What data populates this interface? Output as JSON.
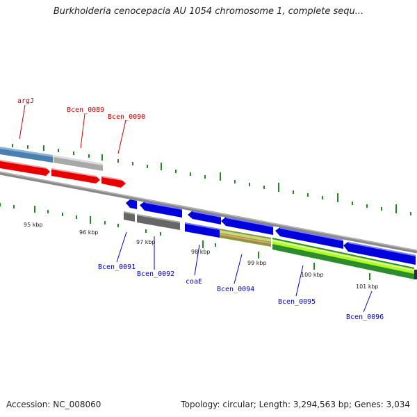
{
  "title": "Burkholderia cenocepacia AU 1054 chromosome 1, complete sequ...",
  "footer": {
    "accession": "Accession: NC_008060",
    "summary": "Topology: circular; Length: 3,294,563 bp; Genes: 3,034"
  },
  "colors": {
    "forward_label": "#cc0000",
    "reverse_label": "#0000cc",
    "tick": "#228822",
    "backbone": "#808080"
  },
  "kbp_labels": [
    "95 kbp",
    "96 kbp",
    "97 kbp",
    "98 kbp",
    "99 kbp",
    "100 kbp",
    "101 kbp"
  ],
  "genes_forward": [
    {
      "name": "argJ"
    },
    {
      "name": "Bcen_0089"
    },
    {
      "name": "Bcen_0090"
    }
  ],
  "genes_reverse": [
    {
      "name": "Bcen_0091"
    },
    {
      "name": "Bcen_0092"
    },
    {
      "name": "coaE"
    },
    {
      "name": "Bcen_0094"
    },
    {
      "name": "Bcen_0095"
    },
    {
      "name": "Bcen_0096"
    }
  ]
}
